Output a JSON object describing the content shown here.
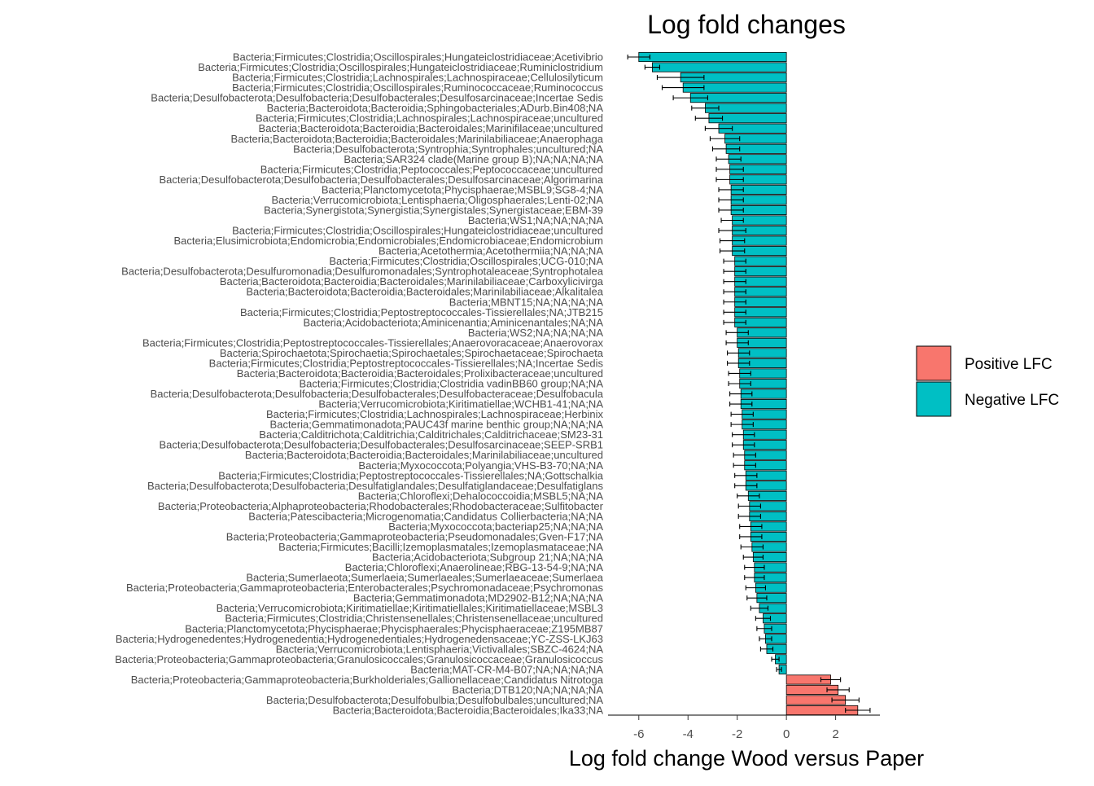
{
  "chart_data": {
    "type": "bar",
    "orientation": "horizontal",
    "title": "Log fold changes",
    "xlabel": "Log fold change Wood versus Paper",
    "ylabel": "",
    "xlim": [
      -7.25,
      3.8
    ],
    "xticks": [
      -6,
      -4,
      -2,
      0,
      2
    ],
    "grid": false,
    "legend": {
      "position": "right",
      "entries": [
        {
          "label": "Positive LFC",
          "color": "#F8766D"
        },
        {
          "label": "Negative LFC",
          "color": "#00BFC4"
        }
      ]
    },
    "error_bar_color": "#000000",
    "bar_outline_color": "#000000",
    "categories": [
      "Bacteria;Firmicutes;Clostridia;Oscillospirales;Hungateiclostridiaceae;Acetivibrio",
      "Bacteria;Firmicutes;Clostridia;Oscillospirales;Hungateiclostridiaceae;Ruminiclostridium",
      "Bacteria;Firmicutes;Clostridia;Lachnospirales;Lachnospiraceae;Cellulosilyticum",
      "Bacteria;Firmicutes;Clostridia;Oscillospirales;Ruminococcaceae;Ruminococcus",
      "Bacteria;Desulfobacterota;Desulfobacteria;Desulfobacterales;Desulfosarcinaceae;Incertae Sedis",
      "Bacteria;Bacteroidota;Bacteroidia;Sphingobacteriales;ADurb.Bin408;NA",
      "Bacteria;Firmicutes;Clostridia;Lachnospirales;Lachnospiraceae;uncultured",
      "Bacteria;Bacteroidota;Bacteroidia;Bacteroidales;Marinifilaceae;uncultured",
      "Bacteria;Bacteroidota;Bacteroidia;Bacteroidales;Marinilabiliaceae;Anaerophaga",
      "Bacteria;Desulfobacterota;Syntrophia;Syntrophales;uncultured;NA",
      "Bacteria;SAR324 clade(Marine group B);NA;NA;NA;NA",
      "Bacteria;Firmicutes;Clostridia;Peptococcales;Peptococcaceae;uncultured",
      "Bacteria;Desulfobacterota;Desulfobacteria;Desulfobacterales;Desulfosarcinaceae;Algorimarina",
      "Bacteria;Planctomycetota;Phycisphaerae;MSBL9;SG8-4;NA",
      "Bacteria;Verrucomicrobiota;Lentisphaeria;Oligosphaerales;Lenti-02;NA",
      "Bacteria;Synergistota;Synergistia;Synergistales;Synergistaceae;EBM-39",
      "Bacteria;WS1;NA;NA;NA;NA",
      "Bacteria;Firmicutes;Clostridia;Oscillospirales;Hungateiclostridiaceae;uncultured",
      "Bacteria;Elusimicrobiota;Endomicrobia;Endomicrobiales;Endomicrobiaceae;Endomicrobium",
      "Bacteria;Acetothermia;Acetothermiia;NA;NA;NA",
      "Bacteria;Firmicutes;Clostridia;Oscillospirales;UCG-010;NA",
      "Bacteria;Desulfobacterota;Desulfuromonadia;Desulfuromonadales;Syntrophotaleaceae;Syntrophotalea",
      "Bacteria;Bacteroidota;Bacteroidia;Bacteroidales;Marinilabiliaceae;Carboxylicivirga",
      "Bacteria;Bacteroidota;Bacteroidia;Bacteroidales;Marinilabiliaceae;Alkalitalea",
      "Bacteria;MBNT15;NA;NA;NA;NA",
      "Bacteria;Firmicutes;Clostridia;Peptostreptococcales-Tissierellales;NA;JTB215",
      "Bacteria;Acidobacteriota;Aminicenantia;Aminicenantales;NA;NA",
      "Bacteria;WS2;NA;NA;NA;NA",
      "Bacteria;Firmicutes;Clostridia;Peptostreptococcales-Tissierellales;Anaerovoracaceae;Anaerovorax",
      "Bacteria;Spirochaetota;Spirochaetia;Spirochaetales;Spirochaetaceae;Spirochaeta",
      "Bacteria;Firmicutes;Clostridia;Peptostreptococcales-Tissierellales;NA;Incertae Sedis",
      "Bacteria;Bacteroidota;Bacteroidia;Bacteroidales;Prolixibacteraceae;uncultured",
      "Bacteria;Firmicutes;Clostridia;Clostridia vadinBB60 group;NA;NA",
      "Bacteria;Desulfobacterota;Desulfobacteria;Desulfobacterales;Desulfobacteraceae;Desulfobacula",
      "Bacteria;Verrucomicrobiota;Kiritimatiellae;WCHB1-41;NA;NA",
      "Bacteria;Firmicutes;Clostridia;Lachnospirales;Lachnospiraceae;Herbinix",
      "Bacteria;Gemmatimonadota;PAUC43f marine benthic group;NA;NA;NA",
      "Bacteria;Calditrichota;Calditrichia;Calditrichales;Calditrichaceae;SM23-31",
      "Bacteria;Desulfobacterota;Desulfobacteria;Desulfobacterales;Desulfosarcinaceae;SEEP-SRB1",
      "Bacteria;Bacteroidota;Bacteroidia;Bacteroidales;Marinilabiliaceae;uncultured",
      "Bacteria;Myxococcota;Polyangia;VHS-B3-70;NA;NA",
      "Bacteria;Firmicutes;Clostridia;Peptostreptococcales-Tissierellales;NA;Gottschalkia",
      "Bacteria;Desulfobacterota;Desulfobacteria;Desulfatiglandales;Desulfatiglandaceae;Desulfatiglans",
      "Bacteria;Chloroflexi;Dehalococcoidia;MSBL5;NA;NA",
      "Bacteria;Proteobacteria;Alphaproteobacteria;Rhodobacterales;Rhodobacteraceae;Sulfitobacter",
      "Bacteria;Patescibacteria;Microgenomatia;Candidatus Collierbacteria;NA;NA",
      "Bacteria;Myxococcota;bacteriap25;NA;NA;NA",
      "Bacteria;Proteobacteria;Gammaproteobacteria;Pseudomonadales;Gven-F17;NA",
      "Bacteria;Firmicutes;Bacilli;Izemoplasmatales;Izemoplasmataceae;NA",
      "Bacteria;Acidobacteriota;Subgroup 21;NA;NA;NA",
      "Bacteria;Chloroflexi;Anaerolineae;RBG-13-54-9;NA;NA",
      "Bacteria;Sumerlaeota;Sumerlaeia;Sumerlaeales;Sumerlaeaceae;Sumerlaea",
      "Bacteria;Proteobacteria;Gammaproteobacteria;Enterobacterales;Psychromonadaceae;Psychromonas",
      "Bacteria;Gemmatimonadota;MD2902-B12;NA;NA;NA",
      "Bacteria;Verrucomicrobiota;Kiritimatiellae;Kiritimatiellales;Kiritimatiellaceae;MSBL3",
      "Bacteria;Firmicutes;Clostridia;Christensenellales;Christensenellaceae;uncultured",
      "Bacteria;Planctomycetota;Phycisphaerae;Phycisphaerales;Phycisphaeraceae;Z195MB87",
      "Bacteria;Hydrogenedentes;Hydrogenedentia;Hydrogenedentiales;Hydrogenedensaceae;YC-ZSS-LKJ63",
      "Bacteria;Verrucomicrobiota;Lentisphaeria;Victivallales;SBZC-4624;NA",
      "Bacteria;Proteobacteria;Gammaproteobacteria;Granulosicoccales;Granulosicoccaceae;Granulosicoccus",
      "Bacteria;MAT-CR-M4-B07;NA;NA;NA;NA",
      "Bacteria;Proteobacteria;Gammaproteobacteria;Burkholderiales;Gallionellaceae;Candidatus Nitrotoga",
      "Bacteria;DTB120;NA;NA;NA;NA",
      "Bacteria;Desulfobacterota;Desulfobulbia;Desulfobulbales;uncultured;NA",
      "Bacteria;Bacteroidota;Bacteroidia;Bacteroidales;Ika33;NA"
    ],
    "values": [
      -6.0,
      -5.45,
      -4.3,
      -4.2,
      -3.9,
      -3.3,
      -3.15,
      -2.75,
      -2.5,
      -2.45,
      -2.35,
      -2.3,
      -2.3,
      -2.25,
      -2.25,
      -2.25,
      -2.2,
      -2.2,
      -2.2,
      -2.2,
      -2.1,
      -2.1,
      -2.1,
      -2.1,
      -2.1,
      -2.1,
      -2.1,
      -2.0,
      -2.0,
      -1.95,
      -1.95,
      -1.9,
      -1.9,
      -1.85,
      -1.85,
      -1.8,
      -1.8,
      -1.75,
      -1.75,
      -1.7,
      -1.7,
      -1.65,
      -1.65,
      -1.55,
      -1.5,
      -1.5,
      -1.45,
      -1.45,
      -1.4,
      -1.35,
      -1.3,
      -1.3,
      -1.25,
      -1.2,
      -1.1,
      -0.95,
      -0.9,
      -0.85,
      -0.8,
      -0.45,
      -0.3,
      1.8,
      2.1,
      2.4,
      2.9
    ],
    "errors": [
      0.45,
      0.3,
      0.95,
      0.85,
      0.7,
      0.55,
      0.55,
      0.55,
      0.6,
      0.55,
      0.5,
      0.55,
      0.55,
      0.5,
      0.5,
      0.5,
      0.45,
      0.55,
      0.5,
      0.5,
      0.45,
      0.45,
      0.45,
      0.45,
      0.45,
      0.45,
      0.45,
      0.45,
      0.45,
      0.45,
      0.45,
      0.45,
      0.45,
      0.45,
      0.45,
      0.45,
      0.45,
      0.45,
      0.45,
      0.45,
      0.45,
      0.45,
      0.45,
      0.45,
      0.45,
      0.45,
      0.45,
      0.45,
      0.45,
      0.4,
      0.4,
      0.4,
      0.4,
      0.4,
      0.35,
      0.3,
      0.3,
      0.25,
      0.25,
      0.15,
      0.1,
      0.4,
      0.45,
      0.55,
      0.5
    ]
  }
}
